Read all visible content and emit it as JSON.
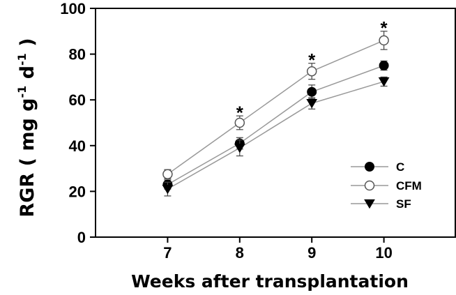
{
  "chart_data": {
    "type": "line",
    "xlabel": "Weeks after transplantation",
    "ylabel_main": "RGR ( mg g",
    "ylabel_sup1": "-1",
    "ylabel_mid": " d",
    "ylabel_sup2": "-1",
    "ylabel_end": " )",
    "x": [
      7,
      8,
      9,
      10
    ],
    "x_tick_labels": [
      "7",
      "8",
      "9",
      "10"
    ],
    "xlim": [
      6,
      11
    ],
    "ylim": [
      0,
      100
    ],
    "y_ticks": [
      0,
      20,
      40,
      60,
      80,
      100
    ],
    "y_tick_labels": [
      "0",
      "20",
      "40",
      "60",
      "80",
      "100"
    ],
    "grid": false,
    "legend_position": "center-right",
    "series": [
      {
        "name": "C",
        "marker": "filled-circle",
        "values": [
          23,
          41,
          63.5,
          75
        ],
        "errors": [
          2,
          2.5,
          3,
          2
        ]
      },
      {
        "name": "CFM",
        "marker": "open-circle",
        "values": [
          27.5,
          50,
          72.5,
          86
        ],
        "errors": [
          2,
          3,
          3.5,
          4
        ]
      },
      {
        "name": "SF",
        "marker": "filled-triangle-down",
        "values": [
          21,
          39,
          58.5,
          68
        ],
        "errors": [
          3,
          3.5,
          2.5,
          2
        ]
      }
    ],
    "annotations": [
      {
        "text": "*",
        "x": 8,
        "y": 56
      },
      {
        "text": "*",
        "x": 9,
        "y": 79
      },
      {
        "text": "*",
        "x": 10,
        "y": 93
      }
    ],
    "colors": {
      "line": "#999999",
      "axis": "#000000",
      "marker_fill": "#000000",
      "marker_open_fill": "#ffffff"
    }
  }
}
